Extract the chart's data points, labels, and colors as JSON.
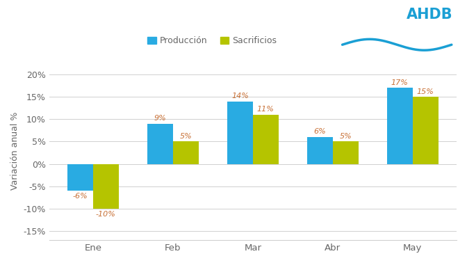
{
  "categories": [
    "Ene",
    "Feb",
    "Mar",
    "Abr",
    "May"
  ],
  "produccion": [
    -6,
    9,
    14,
    6,
    17
  ],
  "sacrificios": [
    -10,
    5,
    11,
    5,
    15
  ],
  "color_produccion": "#29abe2",
  "color_sacrificios": "#b5c400",
  "color_labels": "#c87137",
  "ylabel": "Variación anual %",
  "ylim": [
    -17,
    23
  ],
  "yticks": [
    -15,
    -10,
    -5,
    0,
    5,
    10,
    15,
    20
  ],
  "ytick_labels": [
    "-15%",
    "-10%",
    "-5%",
    "0%",
    "5%",
    "10%",
    "15%",
    "20%"
  ],
  "legend_produccion": "Producción",
  "legend_sacrificios": "Sacrificios",
  "bar_width": 0.32,
  "background_color": "#ffffff",
  "grid_color": "#d0d0d0",
  "tick_color": "#666666",
  "ahdb_color": "#1a9fd4",
  "ahdb_wave_color": "#1a9fd4"
}
